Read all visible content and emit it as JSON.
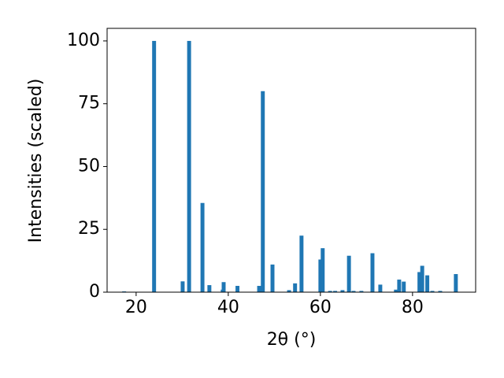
{
  "chart_data": {
    "type": "bar",
    "x_label": "2θ (°)",
    "y_label": "Intensities (scaled)",
    "x": [
      17.4,
      23.9,
      30.1,
      31.5,
      34.4,
      35.9,
      38.8,
      39.0,
      42.0,
      46.7,
      47.5,
      49.6,
      53.2,
      54.5,
      55.9,
      60.0,
      60.5,
      62.1,
      63.2,
      64.8,
      66.2,
      67.2,
      68.9,
      71.3,
      73.0,
      76.4,
      77.1,
      78.1,
      81.5,
      82.1,
      83.2,
      84.3,
      86.0,
      89.4
    ],
    "values": [
      0.3,
      100,
      4.3,
      100,
      35.5,
      2.8,
      1,
      4,
      2.5,
      2.5,
      80,
      11,
      0.8,
      3.5,
      22.5,
      13,
      17.5,
      0.5,
      0.5,
      0.8,
      14.5,
      0.5,
      0.5,
      15.5,
      3,
      1,
      5,
      4.2,
      8,
      10.5,
      6.7,
      0.5,
      0.5,
      7.2
    ],
    "color": "#1f77b4",
    "xlim": [
      13.7,
      93.7
    ],
    "xticks": [
      20,
      40,
      60,
      80
    ],
    "ylim": [
      0,
      105
    ],
    "yticks": [
      0,
      25,
      50,
      75,
      100
    ],
    "grid": false
  }
}
